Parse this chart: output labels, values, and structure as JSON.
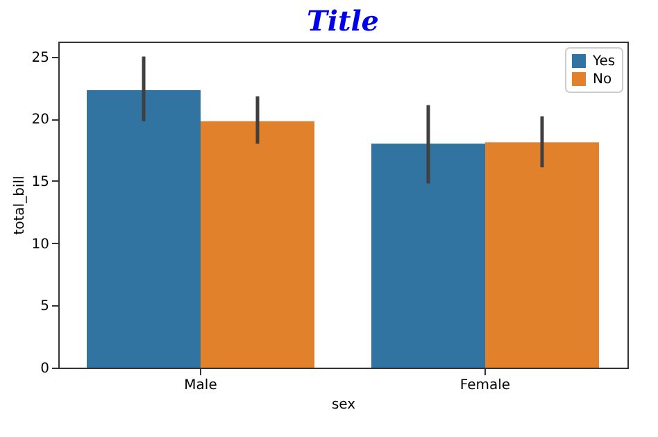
{
  "chart_data": {
    "type": "bar",
    "title": "Title",
    "xlabel": "sex",
    "ylabel": "total_bill",
    "categories": [
      "Male",
      "Female"
    ],
    "series": [
      {
        "name": "Yes",
        "color": "#3274a1",
        "values": [
          22.3,
          18.0
        ],
        "errors": [
          [
            19.8,
            25.0
          ],
          [
            14.8,
            21.1
          ]
        ]
      },
      {
        "name": "No",
        "color": "#e1812c",
        "values": [
          19.8,
          18.1
        ],
        "errors": [
          [
            18.0,
            21.8
          ],
          [
            16.1,
            20.2
          ]
        ]
      }
    ],
    "ylim": [
      0,
      26.2
    ],
    "yticks": [
      0,
      5,
      10,
      15,
      20,
      25
    ],
    "grid": false,
    "legend": "top right"
  }
}
